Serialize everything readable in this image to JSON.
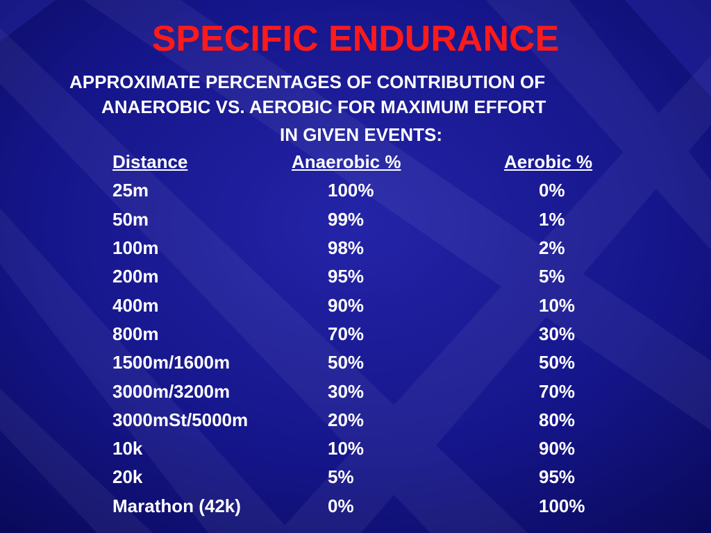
{
  "slide": {
    "title": "SPECIFIC ENDURANCE",
    "subtitle_line1": "APPROXIMATE PERCENTAGES OF CONTRIBUTION OF",
    "subtitle_line2": "ANAEROBIC VS. AEROBIC FOR MAXIMUM EFFORT",
    "subtitle_line3": "IN GIVEN EVENTS:",
    "title_color": "#ff1a1a",
    "text_color": "#ffffff",
    "background_color": "#12127a"
  },
  "table": {
    "headers": [
      "Distance",
      "Anaerobic %",
      "Aerobic %"
    ],
    "rows": [
      [
        "25m",
        "100%",
        "0%"
      ],
      [
        "50m",
        "99%",
        "1%"
      ],
      [
        "100m",
        "98%",
        "2%"
      ],
      [
        "200m",
        "95%",
        "5%"
      ],
      [
        "400m",
        "90%",
        "10%"
      ],
      [
        "800m",
        "70%",
        "30%"
      ],
      [
        "1500m/1600m",
        "50%",
        "50%"
      ],
      [
        "3000m/3200m",
        "30%",
        "70%"
      ],
      [
        "3000mSt/5000m",
        "20%",
        "80%"
      ],
      [
        "10k",
        "10%",
        "90%"
      ],
      [
        "20k",
        "5%",
        "95%"
      ],
      [
        "Marathon (42k)",
        "0%",
        "100%"
      ]
    ]
  }
}
